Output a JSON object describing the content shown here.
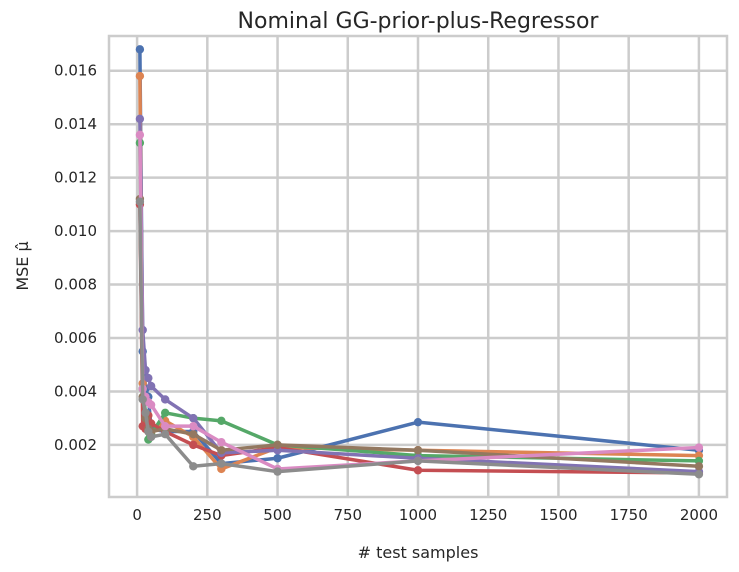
{
  "chart_data": {
    "type": "line",
    "title": "Nominal GG-prior-plus-Regressor",
    "xlabel": "# test samples",
    "ylabel": "MSE μ̂",
    "xlim": [
      -100,
      2100
    ],
    "ylim": [
      5e-05,
      0.0173
    ],
    "grid": true,
    "x_ticks": [
      0,
      250,
      500,
      750,
      1000,
      1250,
      1500,
      1750,
      2000
    ],
    "x_tick_labels": [
      "0",
      "250",
      "500",
      "750",
      "1000",
      "1250",
      "1500",
      "1750",
      "2000"
    ],
    "y_ticks": [
      0.002,
      0.004,
      0.006,
      0.008,
      0.01,
      0.012,
      0.014,
      0.016
    ],
    "y_tick_labels": [
      "0.002",
      "0.004",
      "0.006",
      "0.008",
      "0.010",
      "0.012",
      "0.014",
      "0.016"
    ],
    "x": [
      10,
      20,
      30,
      40,
      50,
      100,
      200,
      300,
      500,
      1000,
      2000
    ],
    "series": [
      {
        "color": "#4c72b0",
        "values": [
          0.0168,
          0.0055,
          0.0041,
          0.0038,
          0.0026,
          0.0025,
          0.0025,
          0.0013,
          0.0015,
          0.00285,
          0.0018
        ]
      },
      {
        "color": "#dd8452",
        "values": [
          0.0158,
          0.0043,
          0.0029,
          0.0025,
          0.0024,
          0.0029,
          0.0023,
          0.0011,
          0.0019,
          0.0018,
          0.0016
        ]
      },
      {
        "color": "#55a868",
        "values": [
          0.0133,
          0.0041,
          0.0032,
          0.0022,
          0.0024,
          0.0032,
          0.003,
          0.0029,
          0.002,
          0.0016,
          0.0014
        ]
      },
      {
        "color": "#c44e52",
        "values": [
          0.011,
          0.0027,
          0.0026,
          0.0031,
          0.0028,
          0.0025,
          0.002,
          0.0016,
          0.0019,
          0.00105,
          0.00095
        ]
      },
      {
        "color": "#8172b3",
        "values": [
          0.0142,
          0.0063,
          0.0048,
          0.0045,
          0.0042,
          0.0037,
          0.003,
          0.0017,
          0.0018,
          0.0015,
          0.001
        ]
      },
      {
        "color": "#937860",
        "values": [
          0.0112,
          0.0038,
          0.003,
          0.0026,
          0.0025,
          0.0026,
          0.0024,
          0.0018,
          0.002,
          0.0018,
          0.0012
        ]
      },
      {
        "color": "#da8bc3",
        "values": [
          0.0136,
          0.0041,
          0.0038,
          0.0036,
          0.0035,
          0.0027,
          0.0027,
          0.0021,
          0.0011,
          0.0014,
          0.0019
        ]
      },
      {
        "color": "#8c8c8c",
        "values": [
          0.0111,
          0.0037,
          0.0032,
          0.0025,
          0.0023,
          0.0024,
          0.0012,
          0.0013,
          0.001,
          0.0014,
          0.0009
        ]
      }
    ]
  }
}
